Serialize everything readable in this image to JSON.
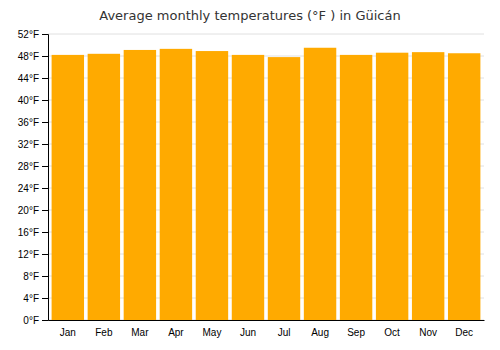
{
  "chart_data": {
    "type": "bar",
    "title": "Average monthly temperatures (°F ) in Güicán",
    "categories": [
      "Jan",
      "Feb",
      "Mar",
      "Apr",
      "May",
      "Jun",
      "Jul",
      "Aug",
      "Sep",
      "Oct",
      "Nov",
      "Dec"
    ],
    "values": [
      48.2,
      48.4,
      49.1,
      49.3,
      48.9,
      48.2,
      47.8,
      49.5,
      48.2,
      48.6,
      48.7,
      48.5
    ],
    "color": "#FFAA00",
    "ylim": [
      0,
      52
    ],
    "yticks": [
      {
        "value": 0,
        "label": "0°F"
      },
      {
        "value": 4,
        "label": "4°F"
      },
      {
        "value": 8,
        "label": "8°F"
      },
      {
        "value": 12,
        "label": "12°F"
      },
      {
        "value": 16,
        "label": "16°F"
      },
      {
        "value": 20,
        "label": "20°F"
      },
      {
        "value": 24,
        "label": "24°F"
      },
      {
        "value": 28,
        "label": "28°F"
      },
      {
        "value": 32,
        "label": "32°F"
      },
      {
        "value": 36,
        "label": "36°F"
      },
      {
        "value": 40,
        "label": "40°F"
      },
      {
        "value": 44,
        "label": "44°F"
      },
      {
        "value": 48,
        "label": "48°F"
      },
      {
        "value": 52,
        "label": "52°F"
      }
    ],
    "grid": true
  }
}
